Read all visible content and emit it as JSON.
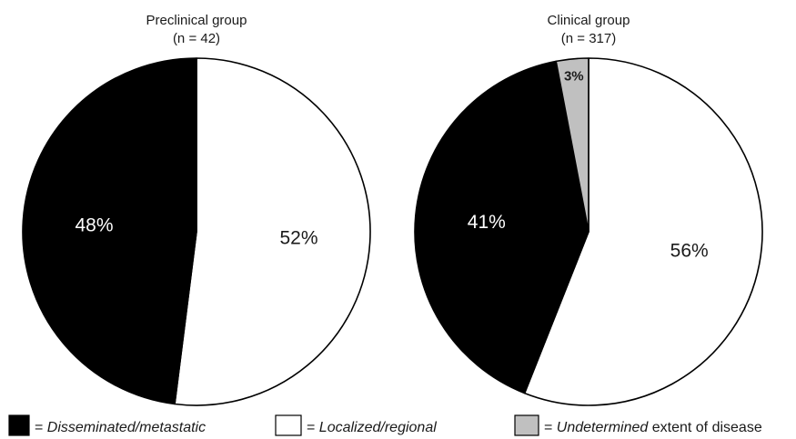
{
  "chart_data": [
    {
      "type": "pie",
      "title": "Preclinical group",
      "subtitle": "(n = 42)",
      "slices": [
        {
          "key": "localized",
          "value": 52,
          "label": "52%",
          "color": "#ffffff",
          "label_color": "#1a1a1a"
        },
        {
          "key": "disseminated",
          "value": 48,
          "label": "48%",
          "color": "#000000",
          "label_color": "#ffffff"
        }
      ]
    },
    {
      "type": "pie",
      "title": "Clinical group",
      "subtitle": "(n = 317)",
      "slices": [
        {
          "key": "localized",
          "value": 56,
          "label": "56%",
          "color": "#ffffff",
          "label_color": "#1a1a1a"
        },
        {
          "key": "disseminated",
          "value": 41,
          "label": "41%",
          "color": "#000000",
          "label_color": "#ffffff"
        },
        {
          "key": "undetermined",
          "value": 3,
          "label": "3%",
          "color": "#c0c0c0",
          "label_color": "#1a1a1a"
        }
      ]
    }
  ],
  "legend": {
    "placement": "bottom",
    "items": [
      {
        "key": "disseminated",
        "swatch_color": "#000000",
        "prefix": "= ",
        "italic": "Disseminated/metastatic",
        "suffix": ""
      },
      {
        "key": "localized",
        "swatch_color": "#ffffff",
        "prefix": "= ",
        "italic": "Localized/regional",
        "suffix": ""
      },
      {
        "key": "undetermined",
        "swatch_color": "#c0c0c0",
        "prefix": "= ",
        "italic": "Undetermined",
        "suffix": " extent of disease"
      }
    ]
  }
}
